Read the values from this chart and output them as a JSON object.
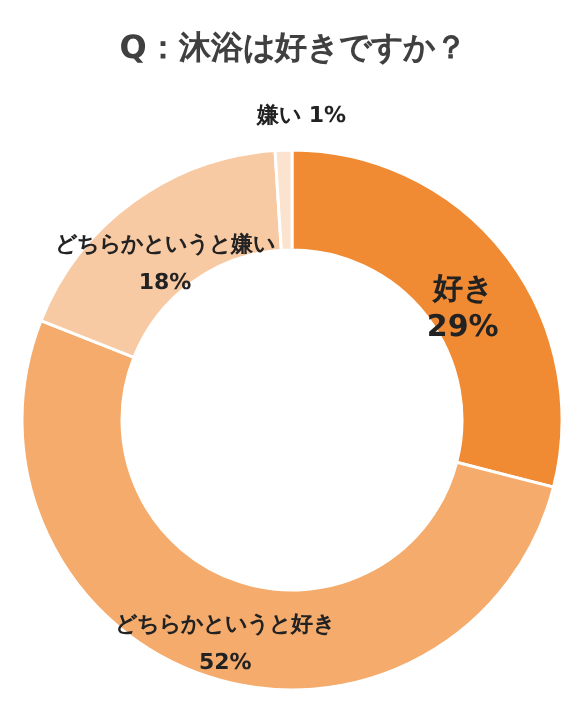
{
  "chart_data": {
    "type": "donut",
    "title": "Q：沐浴は好きですか？",
    "categories": [
      "好き",
      "どちらかというと好き",
      "どちらかというと嫌い",
      "嫌い"
    ],
    "values": [
      29,
      52,
      18,
      1
    ],
    "value_labels": [
      "29%",
      "52%",
      "18%",
      "1%"
    ],
    "colors": [
      "#f08a33",
      "#f4ab6c",
      "#f8caa3",
      "#fbe3d0"
    ],
    "legend": false
  }
}
